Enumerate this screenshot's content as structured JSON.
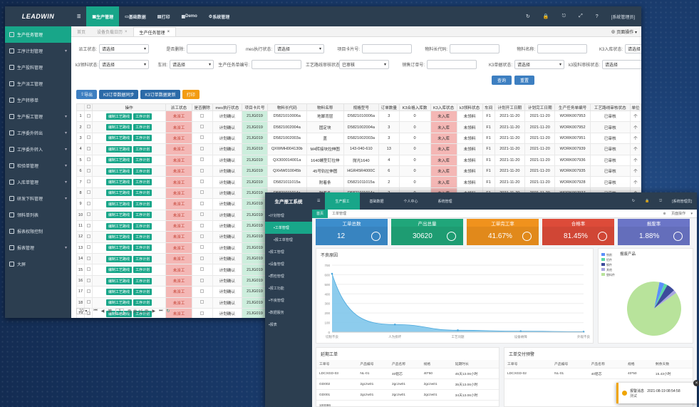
{
  "app1": {
    "logo": "LEADWIN",
    "nav": [
      "生产管理",
      "基础数据",
      "打印",
      "Demo",
      "系统管理"
    ],
    "user": "[系统管理员]",
    "sidebar": [
      "生产任务管理",
      "工序计划管理",
      "生产投料管理",
      "生产派工管理",
      "生产转移单",
      "生产报工管理",
      "工序委外转出",
      "工序委外转入",
      "检验单管理",
      "入库单管理",
      "研发下料管理",
      "领料单列表",
      "报表权限控制",
      "报表管理",
      "大屏"
    ],
    "tabs": [
      "首页",
      "设备负载日历",
      "生产任务管理"
    ],
    "page_ops": "页面操作",
    "filters": {
      "row1": [
        [
          "派工状态:",
          "请选择"
        ],
        [
          "是否删除:",
          ""
        ],
        [
          "mes执行状态:",
          "请选择"
        ],
        [
          "项目卡片号:",
          ""
        ],
        [
          "物料长代码:",
          ""
        ],
        [
          "物料名称:",
          ""
        ],
        [
          "K3入库状态:",
          "请选择"
        ]
      ],
      "row2": [
        [
          "k3领料状态:",
          "请选择"
        ],
        [
          "生产任务单编号:",
          ""
        ],
        [
          "工艺路线审核状态:",
          "已审核"
        ],
        [
          "销售订单号:",
          ""
        ],
        [
          "K3单据状态:",
          "请选择"
        ],
        [
          "k3投料审核状态:",
          "请选择"
        ]
      ],
      "workshop_label": "车间:",
      "workshop_val": "请选择",
      "query": "查询",
      "reset": "重置"
    },
    "toolbar": [
      "导出",
      "K3订单数据同步",
      "K3订单数据更新",
      "打印"
    ],
    "columns": [
      "",
      "操作",
      "派工状态",
      "是否删除",
      "mes执行状态",
      "项目卡片号",
      "物料长代码",
      "物料名称",
      "规格型号",
      "订单数量",
      "K3合格入库数",
      "K3入库状态",
      "k3领料状态",
      "车间",
      "计划开工日期",
      "计划完工日期",
      "生产任务单编号",
      "工艺路线审核状态",
      "单位"
    ],
    "btn_route": "编制工艺路线",
    "btn_plan": "工序计划",
    "rows": [
      [
        "1",
        "未派工",
        "计划确认",
        "21JG019",
        "D5821010006a",
        "地脚背层",
        "D5821010006a",
        "3",
        "0",
        "未入库",
        "未领料",
        "F1",
        "2021-11-20",
        "2021-11-20",
        "WORK007953",
        "已审核",
        "个"
      ],
      [
        "2",
        "未派工",
        "计划确认",
        "21JG019",
        "D5821002004a",
        "固定块",
        "D5821002004a",
        "3",
        "0",
        "未入库",
        "未领料",
        "F1",
        "2021-11-20",
        "2021-11-20",
        "WORK007952",
        "已审核",
        "个"
      ],
      [
        "3",
        "未派工",
        "计划确认",
        "21JG019",
        "D5821002003a",
        "盖",
        "D5821002003a",
        "3",
        "0",
        "未入库",
        "未领料",
        "F1",
        "2021-11-20",
        "2021-11-20",
        "WORK007951",
        "已审核",
        "个"
      ],
      [
        "4",
        "未派工",
        "计划确认",
        "21JG019",
        "QXWMH004130b",
        "M4转接块拉伸图",
        "143-040-610",
        "13",
        "0",
        "未入库",
        "未领料",
        "F1",
        "2021-11-20",
        "2021-11-20",
        "WORK007939",
        "已审核",
        "个"
      ],
      [
        "5",
        "未派工",
        "计划确认",
        "21JG019",
        "QX300014001a",
        "1640螺型钉拉伸",
        "抛光1640",
        "4",
        "0",
        "未入库",
        "未领料",
        "F1",
        "2021-11-20",
        "2021-11-20",
        "WORK007936",
        "已审核",
        "个"
      ],
      [
        "6",
        "未派工",
        "计划确认",
        "21JG019",
        "QXHW010045b",
        "45号轨拉伸图",
        "HGR45R4000C",
        "6",
        "0",
        "未入库",
        "未领料",
        "F1",
        "2021-11-20",
        "2021-11-20",
        "WORK007935",
        "已审核",
        "个"
      ],
      [
        "7",
        "未派工",
        "计划确认",
        "21JG019",
        "D5821011015a",
        "附着条",
        "D5821011015a",
        "2",
        "0",
        "未入库",
        "未领料",
        "F1",
        "2021-11-20",
        "2021-11-20",
        "WORK007928",
        "已审核",
        "个"
      ],
      [
        "8",
        "未派工",
        "计划确认",
        "21JG019",
        "D5821011014a",
        "附着条",
        "D5821011014a",
        "2",
        "0",
        "未入库",
        "未领料",
        "F1",
        "2021-11-20",
        "2021-11-20",
        "WORK007927",
        "已审核",
        "个"
      ],
      [
        "9",
        "未派工",
        "计划确认",
        "21JG019",
        "",
        "",
        "",
        "",
        "",
        "",
        "",
        "",
        "",
        "",
        "",
        "",
        ""
      ],
      [
        "10",
        "未派工",
        "计划确认",
        "21JG019",
        "",
        "",
        "",
        "",
        "",
        "",
        "",
        "",
        "",
        "",
        "",
        "",
        ""
      ],
      [
        "11",
        "未派工",
        "计划确认",
        "21JG019",
        "",
        "",
        "",
        "",
        "",
        "",
        "",
        "",
        "",
        "",
        "",
        "",
        ""
      ],
      [
        "12",
        "未派工",
        "计划确认",
        "21JG019",
        "",
        "",
        "",
        "",
        "",
        "",
        "",
        "",
        "",
        "",
        "",
        "",
        ""
      ],
      [
        "13",
        "未派工",
        "计划确认",
        "21JG019",
        "",
        "",
        "",
        "",
        "",
        "",
        "",
        "",
        "",
        "",
        "",
        "",
        ""
      ],
      [
        "14",
        "未派工",
        "计划确认",
        "21JG019",
        "",
        "",
        "",
        "",
        "",
        "",
        "",
        "",
        "",
        "",
        "",
        "",
        ""
      ],
      [
        "15",
        "未派工",
        "计划确认",
        "21JG019",
        "",
        "",
        "",
        "",
        "",
        "",
        "",
        "",
        "",
        "",
        "",
        "",
        ""
      ],
      [
        "16",
        "未派工",
        "计划确认",
        "21JG019",
        "",
        "",
        "",
        "",
        "",
        "",
        "",
        "",
        "",
        "",
        "",
        "",
        ""
      ],
      [
        "17",
        "未派工",
        "计划确认",
        "21JG019",
        "",
        "",
        "",
        "",
        "",
        "",
        "",
        "",
        "",
        "",
        "",
        "",
        ""
      ],
      [
        "18",
        "未派工",
        "计划确认",
        "21JG019",
        "",
        "",
        "",
        "",
        "",
        "",
        "",
        "",
        "",
        "",
        "",
        "",
        ""
      ],
      [
        "19",
        "未派工",
        "计划确认",
        "21JG019",
        "",
        "",
        "",
        "",
        "",
        "",
        "",
        "",
        "",
        "",
        "",
        "",
        ""
      ]
    ],
    "pager": {
      "size": "20",
      "page_prefix": "第",
      "page": "1",
      "page_suffix": "页 共 15 页"
    }
  },
  "app2": {
    "title": "生产报工系统",
    "nav": [
      "生产报工",
      "基础数据",
      "个人中心",
      "系统管理"
    ],
    "user": "[系统管理员]",
    "sidebar": [
      "计划管理",
      "工单管理",
      "报工单管理",
      "报工管理",
      "设备管理",
      "质检管理",
      "报工功能",
      "不良管理",
      "数据服务",
      "报表"
    ],
    "tabs": [
      "首页",
      "工单管理"
    ],
    "page_ops": "页面操作",
    "kpis": [
      {
        "title": "工单总数",
        "value": "12",
        "color": "#3c8dcc"
      },
      {
        "title": "产出总量",
        "value": "30620",
        "color": "#20a67a"
      },
      {
        "title": "工单完工率",
        "value": "41.67%",
        "color": "#f0921d"
      },
      {
        "title": "合格率",
        "value": "81.45%",
        "color": "#dd4b39"
      },
      {
        "title": "报废率",
        "value": "1.88%",
        "color": "#6b75c7"
      }
    ],
    "area_title": "不良原因",
    "area_xlabels": [
      "切削不良",
      "人为损坏",
      "工艺问题",
      "设备故障",
      "外观不良"
    ],
    "pie_title": "报废产品",
    "legend": [
      "铣削",
      "铝件",
      "钢件",
      "其他",
      "塑料件"
    ],
    "overdue_title": "延期工单",
    "overdue_cols": [
      "工单号",
      "产品编号",
      "产品名称",
      "规格",
      "延期时长"
    ],
    "overdue_rows": [
      [
        "LDCXGD-03",
        "NL-01",
        "40铝芯",
        "40*50",
        "45天13.06小时"
      ],
      [
        "GD002",
        "2gczw01",
        "2gczw01",
        "2gczw01",
        "35天13.06小时"
      ],
      [
        "GD001",
        "2gczw01",
        "2gczw01",
        "2gczw01",
        "34天13.06小时"
      ],
      [
        "100086",
        "",
        "",
        "",
        ""
      ]
    ],
    "warn_title": "工单交付预警",
    "warn_cols": [
      "工单号",
      "产品编号",
      "产品名称",
      "规格",
      "剩余天数"
    ],
    "warn_rows": [
      [
        "LDCXGD-02",
        "NL-01",
        "40铝芯",
        "40*50",
        "15.43小时"
      ]
    ],
    "toast_title": "报警消息",
    "toast_time": "2021-08-19 08:54:58",
    "toast_text": "测试"
  },
  "chart_data": {
    "type": "area",
    "x": [
      "切削不良",
      "人为损坏",
      "工艺问题",
      "设备故障",
      "外观不良"
    ],
    "values": [
      610,
      80,
      20,
      10,
      5
    ],
    "ylim": [
      0,
      700
    ],
    "yticks": [
      "0",
      "100",
      "200",
      "300",
      "400",
      "500",
      "600",
      "700"
    ]
  }
}
